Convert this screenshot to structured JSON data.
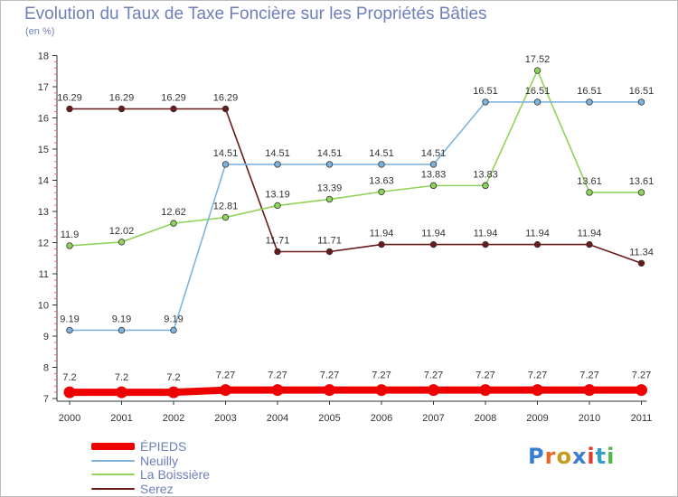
{
  "title": "Evolution du Taux de Taxe Foncière sur les Propriétés Bâties",
  "subtitle": "(en %)",
  "logo": {
    "text": "Proxiti",
    "letter_colors": [
      "#3a7ed2",
      "#e8662a",
      "#c59a1d",
      "#3a7ed2",
      "#e23b2b",
      "#2f9fd0",
      "#54b548"
    ]
  },
  "chart_data": {
    "type": "line",
    "x": [
      "2000",
      "2001",
      "2002",
      "2003",
      "2004",
      "2005",
      "2006",
      "2007",
      "2008",
      "2009",
      "2010",
      "2011"
    ],
    "ylim": [
      7,
      18
    ],
    "yticks": [
      7,
      8,
      9,
      10,
      11,
      12,
      13,
      14,
      15,
      16,
      17,
      18
    ],
    "grid": false,
    "legend_position": "bottom-left",
    "series": [
      {
        "name": "Serez",
        "color": "#6b1a1a",
        "values": [
          16.29,
          16.29,
          16.29,
          16.29,
          11.71,
          11.71,
          11.94,
          11.94,
          11.94,
          11.94,
          11.94,
          11.34
        ],
        "labels": [
          "16.29",
          "16.29",
          "16.29",
          "16.29",
          "11.71",
          "11.71",
          "11.94",
          "11.94",
          "11.94",
          "11.94",
          "11.94",
          "11.34"
        ]
      },
      {
        "name": "La Boissière",
        "color": "#8fd35a",
        "values": [
          11.9,
          12.02,
          12.62,
          12.81,
          13.19,
          13.39,
          13.63,
          13.83,
          13.83,
          17.52,
          13.61,
          13.61
        ],
        "labels": [
          "11.9",
          "12.02",
          "12.62",
          "12.81",
          "13.19",
          "13.39",
          "13.63",
          "13.83",
          "13.83",
          "17.52",
          "13.61",
          "13.61"
        ]
      },
      {
        "name": "Neuilly",
        "color": "#7fb3de",
        "values": [
          9.19,
          9.19,
          9.19,
          14.51,
          14.51,
          14.51,
          14.51,
          14.51,
          16.51,
          16.51,
          16.51,
          16.51
        ],
        "labels": [
          "9.19",
          "9.19",
          "9.19",
          "14.51",
          "14.51",
          "14.51",
          "14.51",
          "14.51",
          "16.51",
          "16.51",
          "16.51",
          "16.51"
        ]
      },
      {
        "name": "ÉPIEDS",
        "color": "#ee0000",
        "values": [
          7.2,
          7.2,
          7.2,
          7.27,
          7.27,
          7.27,
          7.27,
          7.27,
          7.27,
          7.27,
          7.27,
          7.27
        ],
        "labels": [
          "7.2",
          "7.2",
          "7.2",
          "7.27",
          "7.27",
          "7.27",
          "7.27",
          "7.27",
          "7.27",
          "7.27",
          "7.27",
          "7.27"
        ]
      }
    ],
    "legend_order": [
      "ÉPIEDS",
      "Neuilly",
      "La Boissière",
      "Serez"
    ]
  }
}
